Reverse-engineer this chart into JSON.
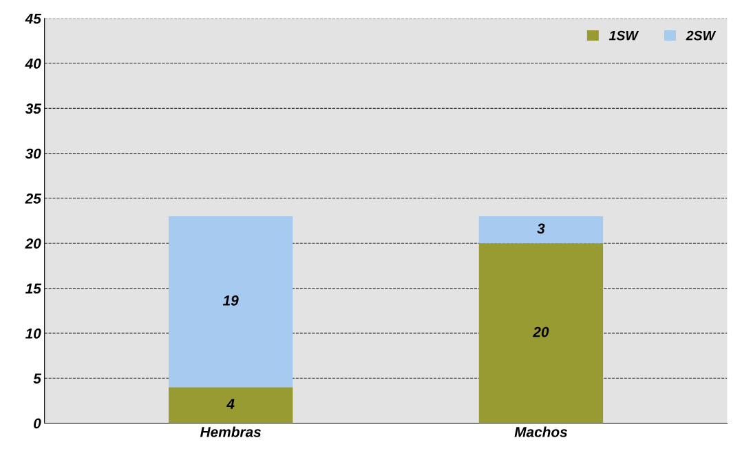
{
  "chart_data": {
    "type": "bar",
    "stacked": true,
    "categories": [
      "Hembras",
      "Machos"
    ],
    "series": [
      {
        "name": "1SW",
        "color": "#989a32",
        "values": [
          4,
          20
        ]
      },
      {
        "name": "2SW",
        "color": "#a7caf0",
        "values": [
          19,
          3
        ]
      }
    ],
    "ylim": [
      0,
      45
    ],
    "yticks": [
      0,
      5,
      10,
      15,
      20,
      25,
      30,
      35,
      40,
      45
    ],
    "grid": "y",
    "legend": "top right",
    "data_labels": true
  }
}
